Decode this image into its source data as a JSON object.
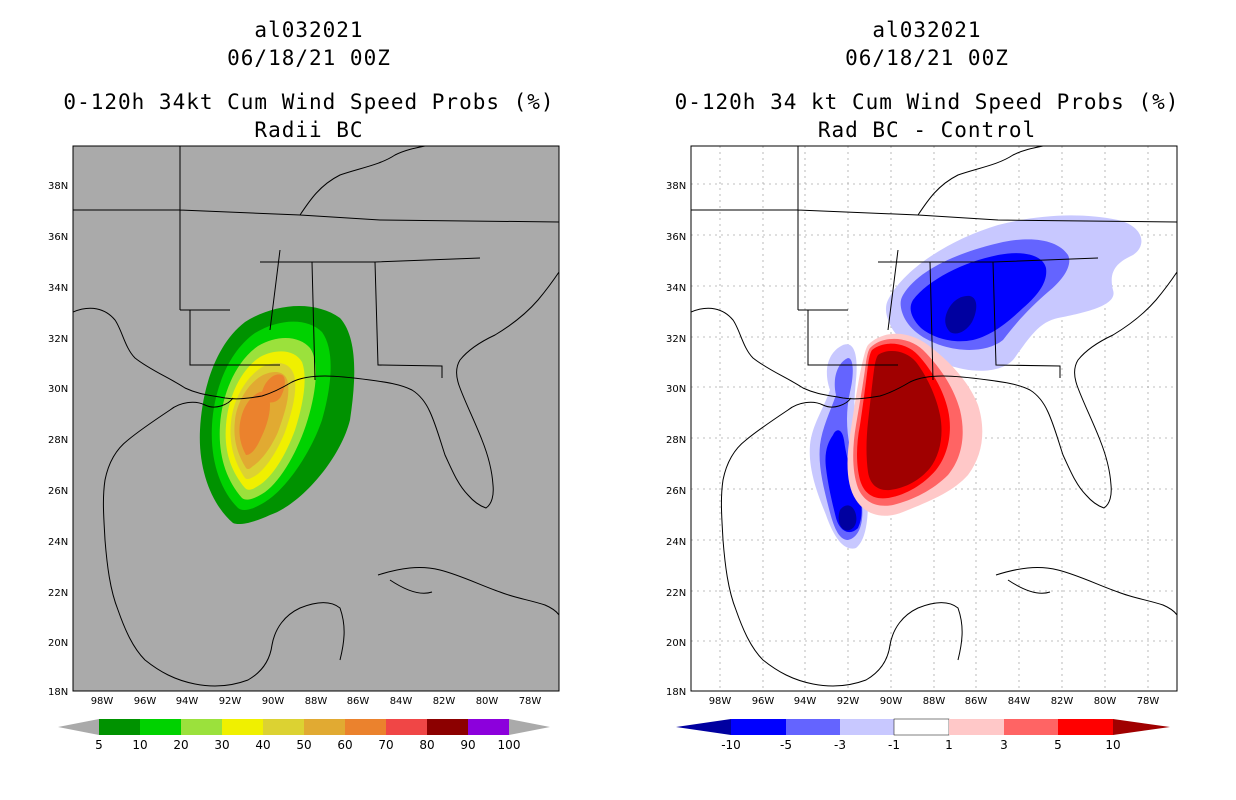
{
  "left_panel": {
    "storm_id": "al032021",
    "date": "06/18/21 00Z",
    "title": "0-120h 34kt Cum Wind Speed Probs (%)",
    "subtitle": "Radii BC",
    "colorbar": {
      "labels": [
        "5",
        "10",
        "20",
        "30",
        "40",
        "50",
        "60",
        "70",
        "80",
        "90",
        "100"
      ],
      "colors": [
        "#009200",
        "#00d200",
        "#9be13c",
        "#f0f000",
        "#dcd232",
        "#e1aa32",
        "#eb822d",
        "#f04646",
        "#8c0000",
        "#8c00dc"
      ]
    }
  },
  "right_panel": {
    "storm_id": "al032021",
    "date": "06/18/21 00Z",
    "title": "0-120h 34 kt Cum Wind Speed Probs (%)",
    "subtitle": "Rad BC - Control",
    "colorbar": {
      "labels": [
        "-10",
        "-5",
        "-3",
        "-1",
        "1",
        "3",
        "5",
        "10"
      ],
      "colors": [
        "#0000a0",
        "#0000ff",
        "#6464ff",
        "#c8c8ff",
        "#ffffff",
        "#ffc8c8",
        "#ff6464",
        "#ff0000",
        "#a00000"
      ]
    }
  },
  "axes": {
    "lat_labels": [
      "38N",
      "36N",
      "34N",
      "32N",
      "30N",
      "28N",
      "26N",
      "24N",
      "22N",
      "20N",
      "18N"
    ],
    "lon_labels": [
      "98W",
      "96W",
      "94W",
      "92W",
      "90W",
      "88W",
      "86W",
      "84W",
      "82W",
      "80W",
      "78W"
    ]
  },
  "colors": {
    "land_bg": "#aaaaaa",
    "map_bg": "#ffffff",
    "coast": "#000000"
  }
}
